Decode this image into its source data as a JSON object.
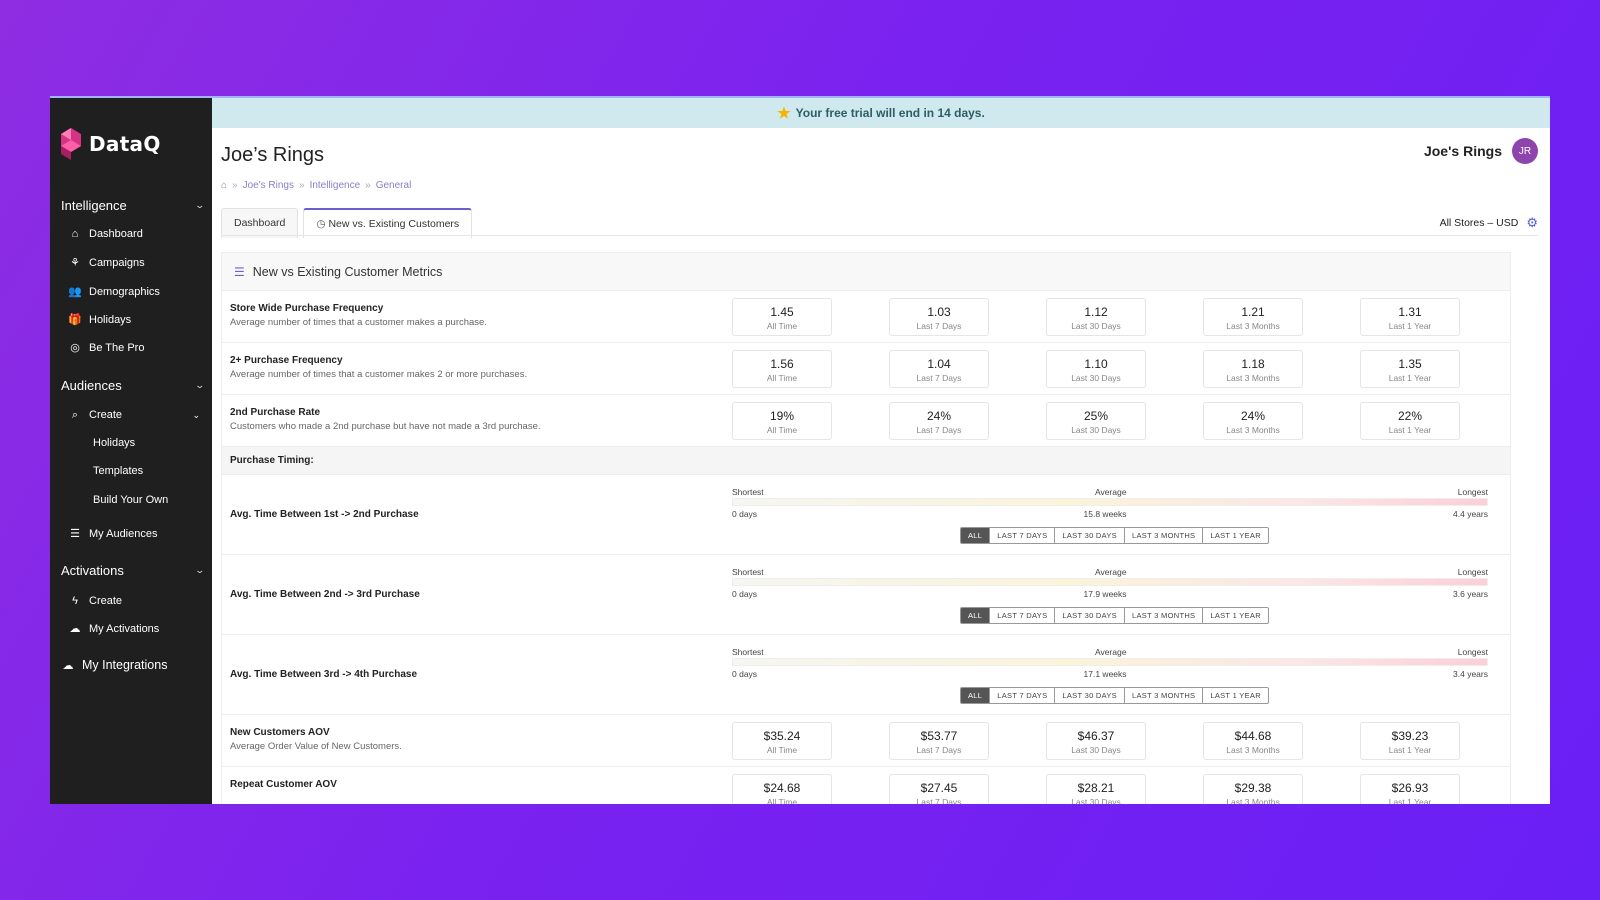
{
  "brand": {
    "name": "DataQ"
  },
  "banner": {
    "text": "Your free trial will end in 14 days."
  },
  "sidebar": {
    "intelligence": {
      "label": "Intelligence",
      "items": [
        "Dashboard",
        "Campaigns",
        "Demographics",
        "Holidays",
        "Be The Pro"
      ]
    },
    "audiences": {
      "label": "Audiences",
      "create": "Create",
      "create_items": [
        "Holidays",
        "Templates",
        "Build Your Own"
      ],
      "my_audiences": "My Audiences"
    },
    "activations": {
      "label": "Activations",
      "create": "Create",
      "my_activations": "My Activations"
    },
    "integrations": "My Integrations"
  },
  "header": {
    "title": "Joe’s Rings",
    "breadcrumb": [
      "Joe's Rings",
      "Intelligence",
      "General"
    ],
    "user_name": "Joe's Rings",
    "avatar_initials": "JR",
    "tabs": [
      "Dashboard",
      "New vs. Existing Customers"
    ],
    "store_selector": "All Stores – USD"
  },
  "panel": {
    "title": "New vs Existing Customer Metrics",
    "periods": [
      "All Time",
      "Last 7 Days",
      "Last 30 Days",
      "Last 3 Months",
      "Last 1 Year"
    ],
    "metrics": [
      {
        "title": "Store Wide Purchase Frequency",
        "desc": "Average number of times that a customer makes a purchase.",
        "values": [
          "1.45",
          "1.03",
          "1.12",
          "1.21",
          "1.31"
        ]
      },
      {
        "title": "2+ Purchase Frequency",
        "desc": "Average number of times that a customer makes 2 or more purchases.",
        "values": [
          "1.56",
          "1.04",
          "1.10",
          "1.18",
          "1.35"
        ]
      },
      {
        "title": "2nd Purchase Rate",
        "desc": "Customers who made a 2nd purchase but have not made a 3rd purchase.",
        "values": [
          "19%",
          "24%",
          "25%",
          "24%",
          "22%"
        ]
      }
    ],
    "timing_header": "Purchase Timing:",
    "scale_labels": {
      "shortest": "Shortest",
      "average": "Average",
      "longest": "Longest"
    },
    "filters": [
      "ALL",
      "LAST 7 DAYS",
      "LAST 30 DAYS",
      "LAST 3 MONTHS",
      "LAST 1 YEAR"
    ],
    "timings": [
      {
        "title": "Avg. Time Between 1st -> 2nd Purchase",
        "shortest": "0 days",
        "average": "15.8 weeks",
        "longest": "4.4 years"
      },
      {
        "title": "Avg. Time Between 2nd -> 3rd Purchase",
        "shortest": "0 days",
        "average": "17.9 weeks",
        "longest": "3.6 years"
      },
      {
        "title": "Avg. Time Between 3rd -> 4th Purchase",
        "shortest": "0 days",
        "average": "17.1 weeks",
        "longest": "3.4 years"
      }
    ],
    "aov": [
      {
        "title": "New Customers AOV",
        "desc": "Average Order Value of New Customers.",
        "values": [
          "$35.24",
          "$53.77",
          "$46.37",
          "$44.68",
          "$39.23"
        ]
      },
      {
        "title": "Repeat Customer AOV",
        "desc": "",
        "values": [
          "$24.68",
          "$27.45",
          "$28.21",
          "$29.38",
          "$26.93"
        ]
      }
    ]
  },
  "colors": {
    "accent": "#6b5fd0",
    "sidebar_bg": "#1f1f1f",
    "banner_bg": "#cfe9ef",
    "chat_button": "#2aa0f0"
  }
}
